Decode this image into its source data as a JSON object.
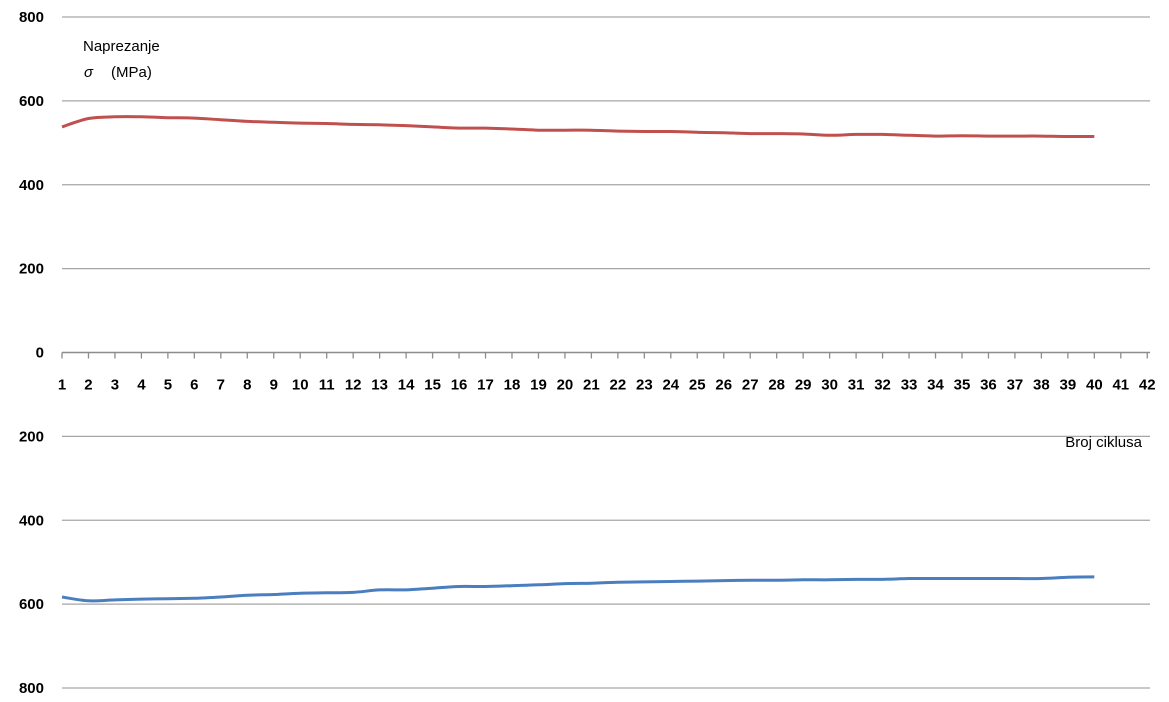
{
  "chart_data": {
    "type": "line",
    "title": "",
    "ylabel": "Naprezanje",
    "ylabel_symbol": "σ",
    "ylabel_unit": "(MPa)",
    "xlabel": "Broj ciklusa",
    "x_ticks": [
      "1",
      "2",
      "3",
      "4",
      "5",
      "6",
      "7",
      "8",
      "9",
      "10",
      "11",
      "12",
      "13",
      "14",
      "15",
      "16",
      "17",
      "18",
      "19",
      "20",
      "21",
      "22",
      "23",
      "24",
      "25",
      "26",
      "27",
      "28",
      "29",
      "30",
      "31",
      "32",
      "33",
      "34",
      "35",
      "36",
      "37",
      "38",
      "39",
      "40",
      "41",
      "42"
    ],
    "y_ticks": [
      {
        "label": "800",
        "value": 800
      },
      {
        "label": "600",
        "value": 600
      },
      {
        "label": "400",
        "value": 400
      },
      {
        "label": "200",
        "value": 200
      },
      {
        "label": "0",
        "value": 0
      },
      {
        "label": "200",
        "value": -200
      },
      {
        "label": "400",
        "value": -400
      },
      {
        "label": "600",
        "value": -600
      },
      {
        "label": "800",
        "value": -800
      }
    ],
    "ylim": [
      -800,
      800
    ],
    "xlim": [
      1,
      42
    ],
    "grid": true,
    "legend": "none",
    "x": [
      1,
      2,
      3,
      4,
      5,
      6,
      7,
      8,
      9,
      10,
      11,
      12,
      13,
      14,
      15,
      16,
      17,
      18,
      19,
      20,
      21,
      22,
      23,
      24,
      25,
      26,
      27,
      28,
      29,
      30,
      31,
      32,
      33,
      34,
      35,
      36,
      37,
      38,
      39,
      40
    ],
    "series": [
      {
        "color": "#c0504d",
        "values": [
          538,
          558,
          562,
          562,
          560,
          559,
          555,
          551,
          549,
          547,
          546,
          544,
          543,
          541,
          538,
          535,
          535,
          533,
          530,
          530,
          530,
          528,
          527,
          527,
          525,
          524,
          522,
          522,
          521,
          518,
          520,
          520,
          518,
          516,
          517,
          516,
          516,
          516,
          515,
          515
        ]
      },
      {
        "color": "#4a7ebf",
        "values": [
          -583,
          -592,
          -590,
          -588,
          -587,
          -586,
          -583,
          -579,
          -577,
          -574,
          -573,
          -572,
          -566,
          -566,
          -562,
          -558,
          -558,
          -556,
          -554,
          -551,
          -550,
          -548,
          -547,
          -546,
          -545,
          -544,
          -543,
          -543,
          -542,
          -542,
          -541,
          -541,
          -539,
          -539,
          -539,
          -539,
          -539,
          -539,
          -536,
          -535
        ]
      }
    ]
  }
}
